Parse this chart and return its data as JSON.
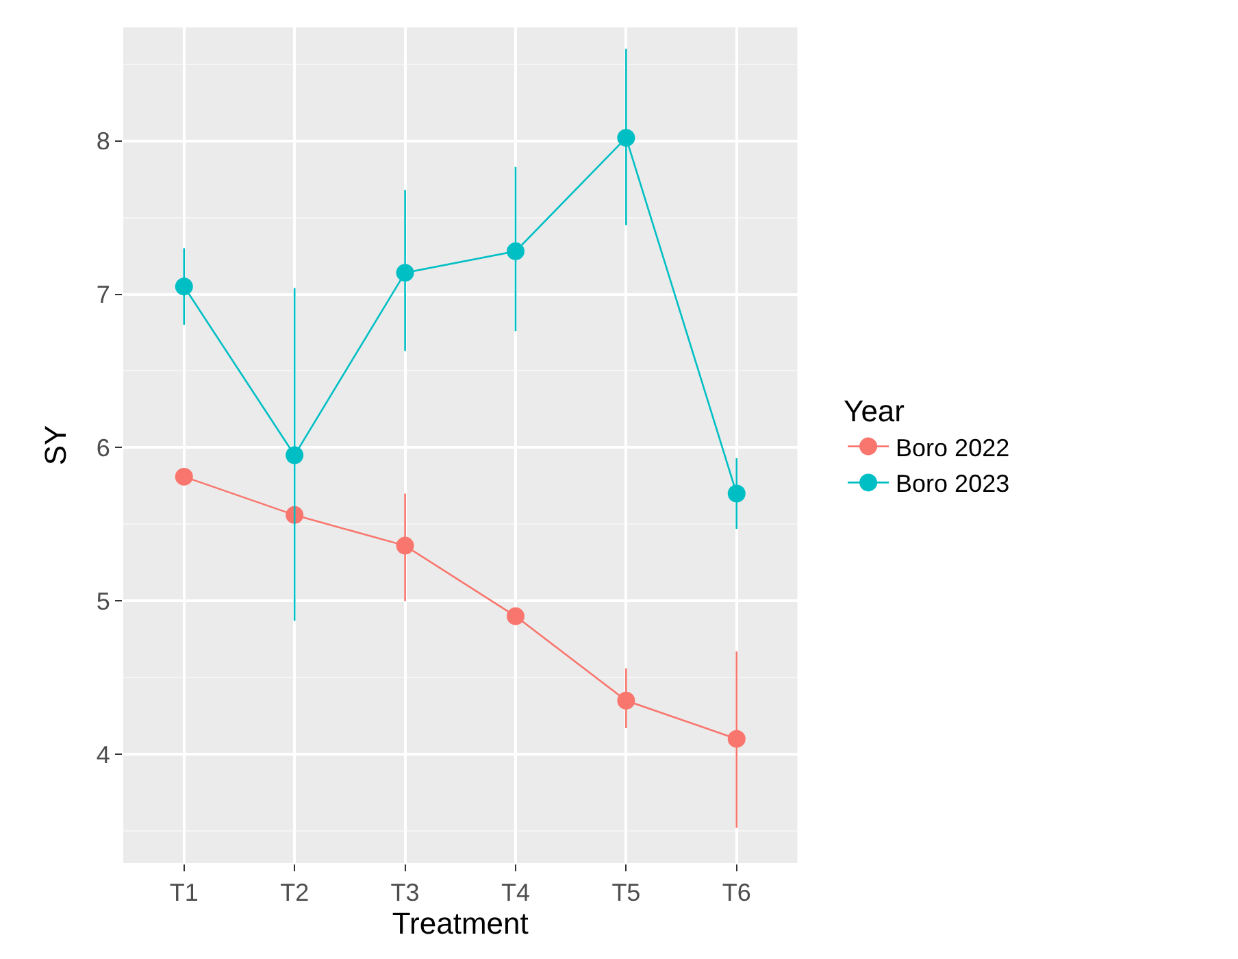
{
  "chart_data": {
    "type": "line",
    "xlabel": "Treatment",
    "ylabel": "SY",
    "legend_title": "Year",
    "categories": [
      "T1",
      "T2",
      "T3",
      "T4",
      "T5",
      "T6"
    ],
    "series": [
      {
        "name": "Boro 2022",
        "color": "#f8766d",
        "values": [
          5.81,
          5.56,
          5.36,
          4.9,
          4.35,
          4.1
        ],
        "errors": [
          null,
          null,
          [
            5.0,
            5.7
          ],
          null,
          [
            4.17,
            4.56
          ],
          [
            3.52,
            4.67
          ]
        ]
      },
      {
        "name": "Boro 2023",
        "color": "#00bfc4",
        "values": [
          7.05,
          5.95,
          7.14,
          7.28,
          8.02,
          5.7
        ],
        "errors": [
          [
            6.8,
            7.3
          ],
          [
            4.87,
            7.04
          ],
          [
            6.63,
            7.68
          ],
          [
            6.76,
            7.83
          ],
          [
            7.45,
            8.6
          ],
          [
            5.47,
            5.93
          ]
        ]
      }
    ],
    "ylim": [
      3.29,
      8.74
    ],
    "yticks": [
      4,
      5,
      6,
      7,
      8
    ],
    "grid": true,
    "legend": "right",
    "marker": "circle",
    "line_style": "solid"
  }
}
